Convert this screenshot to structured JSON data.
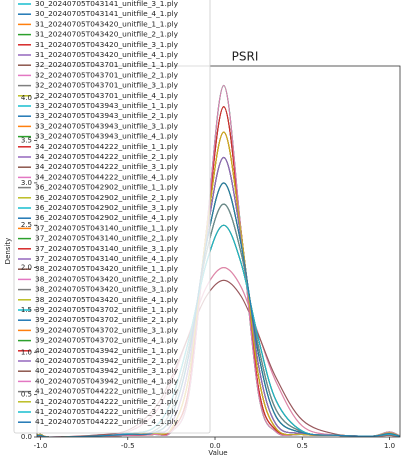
{
  "chart_data": {
    "type": "line",
    "title": "PSRI",
    "x_label": "Value",
    "y_label": "Density",
    "xlim": [
      -1.02,
      1.06
    ],
    "ylim": [
      0,
      4.38
    ],
    "xticks": [
      {
        "value": -1.0,
        "label": "-1.0"
      },
      -0.5,
      {
        "value": 0.0,
        "label": "0.0"
      },
      0.5,
      {
        "value": 1.0,
        "label": "1.0"
      }
    ],
    "yticks": [
      {
        "value": 0.0,
        "label": "0.0"
      },
      0.5,
      {
        "value": 1.0,
        "label": "1.0"
      },
      1.5,
      {
        "value": 2.0,
        "label": "2.0"
      },
      2.5,
      {
        "value": 3.0,
        "label": "3.0"
      },
      3.5,
      {
        "value": 4.0,
        "label": "4.0"
      }
    ],
    "legend": "upper left",
    "x": [
      -1.05,
      -1.0,
      -0.95,
      -0.7,
      -0.5,
      -0.35,
      -0.25,
      -0.15,
      -0.05,
      0.05,
      0.15,
      0.25,
      0.35,
      0.5,
      0.7,
      0.9,
      1.0,
      1.07
    ],
    "series": [
      {
        "name": "30_20240705T043141_unitfile_3_1.ply",
        "color": "#17becf",
        "values": [
          0,
          0.03,
          0,
          0.01,
          0.02,
          0.03,
          0.06,
          0.5,
          2.42,
          4.15,
          2.42,
          0.5,
          0.06,
          0.03,
          0.02,
          0.01,
          0.06,
          0
        ]
      },
      {
        "name": "30_20240705T043141_unitfile_4_1.ply",
        "color": "#1f77b4",
        "values": [
          0,
          0.02,
          0,
          0.01,
          0.03,
          0.05,
          0.15,
          0.84,
          2.35,
          3.3,
          2.35,
          0.84,
          0.15,
          0.04,
          0.02,
          0.01,
          0.04,
          0
        ]
      },
      {
        "name": "31_20240705T043420_unitfile_1_1.ply",
        "color": "#ff7f0e",
        "values": [
          0,
          0.03,
          0,
          0.01,
          0.03,
          0.04,
          0.1,
          0.71,
          2.4,
          3.6,
          2.4,
          0.71,
          0.1,
          0.03,
          0.02,
          0.01,
          0.05,
          0
        ]
      },
      {
        "name": "31_20240705T043420_unitfile_2_1.ply",
        "color": "#2ca02c",
        "values": [
          0,
          0.02,
          0,
          0.01,
          0.04,
          0.11,
          0.43,
          1.15,
          2.05,
          2.5,
          2.05,
          1.15,
          0.43,
          0.07,
          0.02,
          0.01,
          0.03,
          0
        ]
      },
      {
        "name": "31_20240705T043420_unitfile_3_1.ply",
        "color": "#d62728",
        "values": [
          0,
          0.03,
          0,
          0.01,
          0.02,
          0.03,
          0.08,
          0.57,
          2.42,
          3.9,
          2.42,
          0.57,
          0.08,
          0.03,
          0.02,
          0.01,
          0.05,
          0
        ]
      },
      {
        "name": "31_20240705T043420_unitfile_4_1.ply",
        "color": "#9467bd",
        "values": [
          0,
          0.02,
          0,
          0.01,
          0.03,
          0.05,
          0.24,
          0.97,
          2.27,
          3.0,
          2.27,
          0.97,
          0.24,
          0.05,
          0.02,
          0.01,
          0.04,
          0
        ]
      },
      {
        "name": "32_20240705T043701_unitfile_1_1.ply",
        "color": "#8c564b",
        "values": [
          0,
          0.02,
          0,
          0.01,
          0.03,
          0.07,
          0.32,
          1.06,
          2.17,
          2.75,
          2.17,
          1.06,
          0.32,
          0.06,
          0.02,
          0.01,
          0.03,
          0
        ]
      },
      {
        "name": "32_20240705T043701_unitfile_2_1.ply",
        "color": "#e377c2",
        "values": [
          0,
          0.03,
          0,
          0.01,
          0.03,
          0.04,
          0.1,
          0.71,
          2.4,
          3.6,
          2.4,
          0.71,
          0.1,
          0.03,
          0.02,
          0.01,
          0.05,
          0
        ]
      },
      {
        "name": "32_20240705T043701_unitfile_3_1.ply",
        "color": "#7f7f7f",
        "values": [
          0,
          0.02,
          0,
          0.01,
          0.03,
          0.05,
          0.15,
          0.84,
          2.35,
          3.3,
          2.35,
          0.84,
          0.15,
          0.04,
          0.02,
          0.01,
          0.04,
          0
        ]
      },
      {
        "name": "32_20240705T043701_unitfile_4_1.ply",
        "color": "#bcbd22",
        "values": [
          0,
          0.01,
          0,
          0.01,
          0.06,
          0.27,
          0.65,
          1.21,
          1.77,
          2.0,
          1.77,
          1.21,
          0.65,
          0.13,
          0.02,
          0.01,
          0.02,
          0
        ]
      },
      {
        "name": "33_20240705T043943_unitfile_1_1.ply",
        "color": "#17becf",
        "values": [
          0,
          0.03,
          0,
          0.01,
          0.02,
          0.03,
          0.06,
          0.5,
          2.42,
          4.15,
          2.42,
          0.5,
          0.06,
          0.03,
          0.02,
          0.01,
          0.06,
          0
        ]
      },
      {
        "name": "33_20240705T043943_unitfile_2_1.ply",
        "color": "#1f77b4",
        "values": [
          0,
          0.02,
          0,
          0.01,
          0.03,
          0.05,
          0.24,
          0.97,
          2.27,
          3.0,
          2.27,
          0.97,
          0.24,
          0.05,
          0.02,
          0.01,
          0.04,
          0
        ]
      },
      {
        "name": "33_20240705T043943_unitfile_3_1.ply",
        "color": "#ff7f0e",
        "values": [
          0,
          0.03,
          0,
          0.01,
          0.02,
          0.03,
          0.08,
          0.57,
          2.42,
          3.9,
          2.42,
          0.57,
          0.08,
          0.03,
          0.02,
          0.01,
          0.05,
          0
        ]
      },
      {
        "name": "33_20240705T043943_unitfile_4_1.ply",
        "color": "#2ca02c",
        "values": [
          0,
          0.02,
          0,
          0.01,
          0.04,
          0.11,
          0.43,
          1.15,
          2.05,
          2.5,
          2.05,
          1.15,
          0.43,
          0.07,
          0.02,
          0.01,
          0.03,
          0
        ]
      },
      {
        "name": "34_20240705T044222_unitfile_1_1.ply",
        "color": "#d62728",
        "values": [
          0,
          0.02,
          0,
          0.01,
          0.03,
          0.05,
          0.15,
          0.84,
          2.35,
          3.3,
          2.35,
          0.84,
          0.15,
          0.04,
          0.02,
          0.01,
          0.04,
          0
        ]
      },
      {
        "name": "34_20240705T044222_unitfile_2_1.ply",
        "color": "#9467bd",
        "values": [
          0,
          0.02,
          0,
          0.01,
          0.03,
          0.07,
          0.32,
          1.06,
          2.17,
          2.75,
          2.17,
          1.06,
          0.32,
          0.06,
          0.02,
          0.01,
          0.03,
          0
        ]
      },
      {
        "name": "34_20240705T044222_unitfile_3_1.ply",
        "color": "#8c564b",
        "values": [
          0,
          0.03,
          0,
          0.01,
          0.03,
          0.04,
          0.1,
          0.71,
          2.4,
          3.6,
          2.4,
          0.71,
          0.1,
          0.03,
          0.02,
          0.01,
          0.05,
          0
        ]
      },
      {
        "name": "34_20240705T044222_unitfile_4_1.ply",
        "color": "#e377c2",
        "values": [
          0,
          0.01,
          0,
          0.02,
          0.08,
          0.33,
          0.7,
          1.2,
          1.66,
          1.85,
          1.66,
          1.2,
          0.7,
          0.2,
          0.03,
          0.01,
          0.02,
          0
        ]
      },
      {
        "name": "36_20240705T042902_unitfile_1_1.ply",
        "color": "#7f7f7f",
        "values": [
          0,
          0.03,
          0,
          0.01,
          0.02,
          0.03,
          0.08,
          0.57,
          2.42,
          3.9,
          2.42,
          0.57,
          0.08,
          0.03,
          0.02,
          0.01,
          0.05,
          0
        ]
      },
      {
        "name": "36_20240705T042902_unitfile_2_1.ply",
        "color": "#bcbd22",
        "values": [
          0,
          0.02,
          0,
          0.01,
          0.03,
          0.05,
          0.24,
          0.97,
          2.27,
          3.0,
          2.27,
          0.97,
          0.24,
          0.05,
          0.02,
          0.01,
          0.04,
          0
        ]
      },
      {
        "name": "36_20240705T042902_unitfile_3_1.ply",
        "color": "#17becf",
        "values": [
          0,
          0.03,
          0,
          0.01,
          0.02,
          0.03,
          0.06,
          0.5,
          2.42,
          4.15,
          2.42,
          0.5,
          0.06,
          0.03,
          0.02,
          0.01,
          0.06,
          0
        ]
      },
      {
        "name": "36_20240705T042902_unitfile_4_1.ply",
        "color": "#1f77b4",
        "values": [
          0,
          0.02,
          0,
          0.01,
          0.03,
          0.05,
          0.15,
          0.84,
          2.35,
          3.3,
          2.35,
          0.84,
          0.15,
          0.04,
          0.02,
          0.01,
          0.04,
          0
        ]
      },
      {
        "name": "37_20240705T043140_unitfile_1_1.ply",
        "color": "#ff7f0e",
        "values": [
          0,
          0.02,
          0,
          0.01,
          0.04,
          0.11,
          0.43,
          1.15,
          2.05,
          2.5,
          2.05,
          1.15,
          0.43,
          0.07,
          0.02,
          0.01,
          0.03,
          0
        ]
      },
      {
        "name": "37_20240705T043140_unitfile_2_1.ply",
        "color": "#2ca02c",
        "values": [
          0,
          0.02,
          0,
          0.01,
          0.03,
          0.07,
          0.32,
          1.06,
          2.17,
          2.75,
          2.17,
          1.06,
          0.32,
          0.06,
          0.02,
          0.01,
          0.03,
          0
        ]
      },
      {
        "name": "37_20240705T043140_unitfile_3_1.ply",
        "color": "#d62728",
        "values": [
          0,
          0.03,
          0,
          0.01,
          0.03,
          0.04,
          0.1,
          0.71,
          2.4,
          3.6,
          2.4,
          0.71,
          0.1,
          0.03,
          0.02,
          0.01,
          0.05,
          0
        ]
      },
      {
        "name": "37_20240705T043140_unitfile_4_1.ply",
        "color": "#9467bd",
        "values": [
          0,
          0.02,
          0,
          0.01,
          0.03,
          0.05,
          0.24,
          0.97,
          2.27,
          3.0,
          2.27,
          0.97,
          0.24,
          0.05,
          0.02,
          0.01,
          0.04,
          0
        ]
      },
      {
        "name": "38_20240705T043420_unitfile_1_1.ply",
        "color": "#8c564b",
        "values": [
          0,
          0.03,
          0,
          0.01,
          0.02,
          0.03,
          0.08,
          0.57,
          2.42,
          3.9,
          2.42,
          0.57,
          0.08,
          0.03,
          0.02,
          0.01,
          0.05,
          0
        ]
      },
      {
        "name": "38_20240705T043420_unitfile_2_1.ply",
        "color": "#e377c2",
        "values": [
          0,
          0.01,
          0,
          0.01,
          0.06,
          0.27,
          0.65,
          1.21,
          1.77,
          2.0,
          1.77,
          1.21,
          0.65,
          0.13,
          0.02,
          0.01,
          0.02,
          0
        ]
      },
      {
        "name": "38_20240705T043420_unitfile_3_1.ply",
        "color": "#7f7f7f",
        "values": [
          0,
          0.02,
          0,
          0.01,
          0.03,
          0.05,
          0.15,
          0.84,
          2.35,
          3.3,
          2.35,
          0.84,
          0.15,
          0.04,
          0.02,
          0.01,
          0.04,
          0
        ]
      },
      {
        "name": "38_20240705T043420_unitfile_4_1.ply",
        "color": "#bcbd22",
        "values": [
          0,
          0.03,
          0,
          0.01,
          0.02,
          0.03,
          0.06,
          0.5,
          2.42,
          4.15,
          2.42,
          0.5,
          0.06,
          0.03,
          0.02,
          0.01,
          0.06,
          0
        ]
      },
      {
        "name": "39_20240705T043702_unitfile_1_1.ply",
        "color": "#17becf",
        "values": [
          0,
          0.02,
          0,
          0.01,
          0.03,
          0.07,
          0.32,
          1.06,
          2.17,
          2.75,
          2.17,
          1.06,
          0.32,
          0.06,
          0.02,
          0.01,
          0.03,
          0
        ]
      },
      {
        "name": "39_20240705T043702_unitfile_2_1.ply",
        "color": "#1f77b4",
        "values": [
          0,
          0.02,
          0,
          0.01,
          0.04,
          0.11,
          0.43,
          1.15,
          2.05,
          2.5,
          2.05,
          1.15,
          0.43,
          0.07,
          0.02,
          0.01,
          0.03,
          0
        ]
      },
      {
        "name": "39_20240705T043702_unitfile_3_1.ply",
        "color": "#ff7f0e",
        "values": [
          0,
          0.03,
          0,
          0.01,
          0.03,
          0.04,
          0.1,
          0.71,
          2.4,
          3.6,
          2.4,
          0.71,
          0.1,
          0.03,
          0.02,
          0.01,
          0.05,
          0
        ]
      },
      {
        "name": "39_20240705T043702_unitfile_4_1.ply",
        "color": "#2ca02c",
        "values": [
          0,
          0.02,
          0,
          0.01,
          0.03,
          0.05,
          0.24,
          0.97,
          2.27,
          3.0,
          2.27,
          0.97,
          0.24,
          0.05,
          0.02,
          0.01,
          0.04,
          0
        ]
      },
      {
        "name": "40_20240705T043942_unitfile_1_1.ply",
        "color": "#d62728",
        "values": [
          0,
          0.03,
          0,
          0.01,
          0.02,
          0.03,
          0.08,
          0.57,
          2.42,
          3.9,
          2.42,
          0.57,
          0.08,
          0.03,
          0.02,
          0.01,
          0.05,
          0
        ]
      },
      {
        "name": "40_20240705T043942_unitfile_2_1.ply",
        "color": "#9467bd",
        "values": [
          0,
          0.02,
          0,
          0.01,
          0.03,
          0.05,
          0.15,
          0.84,
          2.35,
          3.3,
          2.35,
          0.84,
          0.15,
          0.04,
          0.02,
          0.01,
          0.04,
          0
        ]
      },
      {
        "name": "40_20240705T043942_unitfile_3_1.ply",
        "color": "#8c564b",
        "values": [
          0,
          0.01,
          0,
          0.02,
          0.08,
          0.33,
          0.7,
          1.2,
          1.66,
          1.85,
          1.66,
          1.2,
          0.7,
          0.2,
          0.03,
          0.01,
          0.02,
          0
        ]
      },
      {
        "name": "40_20240705T043942_unitfile_4_1.ply",
        "color": "#e377c2",
        "values": [
          0,
          0.03,
          0,
          0.01,
          0.02,
          0.03,
          0.06,
          0.5,
          2.42,
          4.15,
          2.42,
          0.5,
          0.06,
          0.03,
          0.02,
          0.01,
          0.06,
          0
        ]
      },
      {
        "name": "41_20240705T044222_unitfile_1_1.ply",
        "color": "#7f7f7f",
        "values": [
          0,
          0.02,
          0,
          0.01,
          0.03,
          0.07,
          0.32,
          1.06,
          2.17,
          2.75,
          2.17,
          1.06,
          0.32,
          0.06,
          0.02,
          0.01,
          0.03,
          0
        ]
      },
      {
        "name": "41_20240705T044222_unitfile_2_1.ply",
        "color": "#bcbd22",
        "values": [
          0,
          0.03,
          0,
          0.01,
          0.03,
          0.04,
          0.1,
          0.71,
          2.4,
          3.6,
          2.4,
          0.71,
          0.1,
          0.03,
          0.02,
          0.01,
          0.05,
          0
        ]
      },
      {
        "name": "41_20240705T044222_unitfile_3_1.ply",
        "color": "#17becf",
        "values": [
          0,
          0.02,
          0,
          0.01,
          0.04,
          0.11,
          0.43,
          1.15,
          2.05,
          2.5,
          2.05,
          1.15,
          0.43,
          0.07,
          0.02,
          0.01,
          0.03,
          0
        ]
      },
      {
        "name": "41_20240705T044222_unitfile_4_1.ply",
        "color": "#1f77b4",
        "values": [
          0,
          0.02,
          0,
          0.01,
          0.03,
          0.05,
          0.24,
          0.97,
          2.27,
          3.0,
          2.27,
          0.97,
          0.24,
          0.05,
          0.02,
          0.01,
          0.04,
          0
        ]
      }
    ]
  }
}
